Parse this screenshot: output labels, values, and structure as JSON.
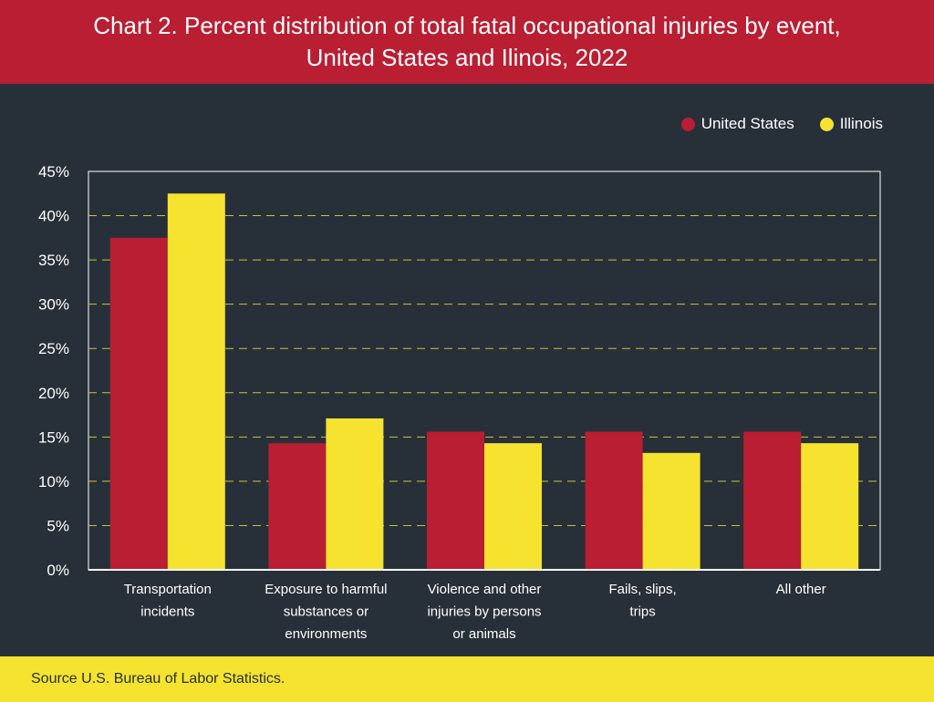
{
  "header": {
    "title_line1": "Chart 2. Percent distribution of total fatal occupational injuries by event,",
    "title_line2": "United States and Ilinois, 2022"
  },
  "footer": {
    "source": "Source U.S. Bureau of Labor Statistics."
  },
  "colors": {
    "header_bg": "#b91e32",
    "background": "#273039",
    "footer_bg": "#f5e32f",
    "grid": "#c8c23a"
  },
  "chart_data": {
    "type": "bar",
    "title": "Chart 2. Percent distribution of total fatal occupational injuries by event, United States and Ilinois, 2022",
    "categories": [
      [
        "Transportation",
        "incidents"
      ],
      [
        "Exposure to harmful",
        "substances or",
        "environments"
      ],
      [
        "Violence and other",
        "injuries by persons",
        "or animals"
      ],
      [
        "Fails, slips,",
        "trips"
      ],
      [
        "All other"
      ]
    ],
    "series": [
      {
        "name": "United States",
        "color": "#b91e32",
        "values": [
          37.5,
          14.3,
          15.6,
          15.6,
          15.6
        ]
      },
      {
        "name": "Illinois",
        "color": "#f5e32f",
        "values": [
          42.5,
          17.1,
          14.3,
          13.2,
          14.3
        ]
      }
    ],
    "ylim": [
      0,
      45
    ],
    "yticks": [
      0,
      5,
      10,
      15,
      20,
      25,
      30,
      35,
      40,
      45
    ],
    "ytick_labels": [
      "0%",
      "5%",
      "10%",
      "15%",
      "20%",
      "25%",
      "30%",
      "35%",
      "40%",
      "45%"
    ],
    "grid": true,
    "legend_position": "top-right"
  }
}
